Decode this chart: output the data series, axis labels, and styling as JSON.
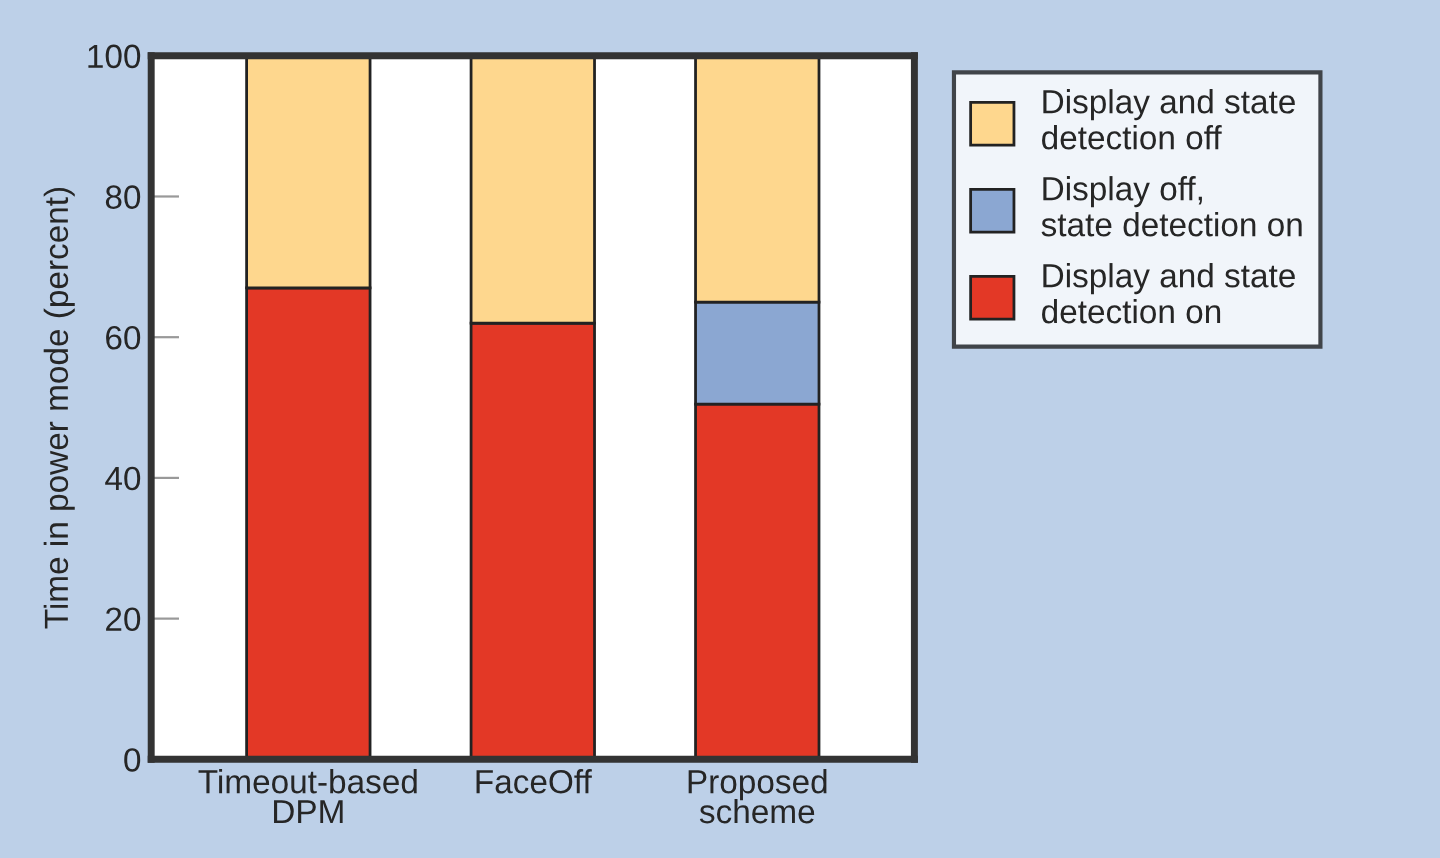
{
  "chart_data": {
    "type": "bar",
    "stacked": true,
    "ylabel": "Time in power mode (percent)",
    "categories": [
      "Timeout-based\nDPM",
      "FaceOff",
      "Proposed\nscheme"
    ],
    "series": [
      {
        "name": "Display and state\ndetection on",
        "color": "#e33826",
        "values": [
          67,
          62,
          50.5
        ]
      },
      {
        "name": "Display off,\nstate detection on",
        "color": "#8ba7d2",
        "values": [
          0,
          0,
          14.5
        ]
      },
      {
        "name": "Display and state\ndetection off",
        "color": "#fed78e",
        "values": [
          33,
          38,
          35
        ]
      }
    ],
    "ylim": [
      0,
      100
    ],
    "yticks": [
      0,
      20,
      40,
      60,
      80,
      100
    ],
    "grid": false,
    "legend": "top right"
  }
}
